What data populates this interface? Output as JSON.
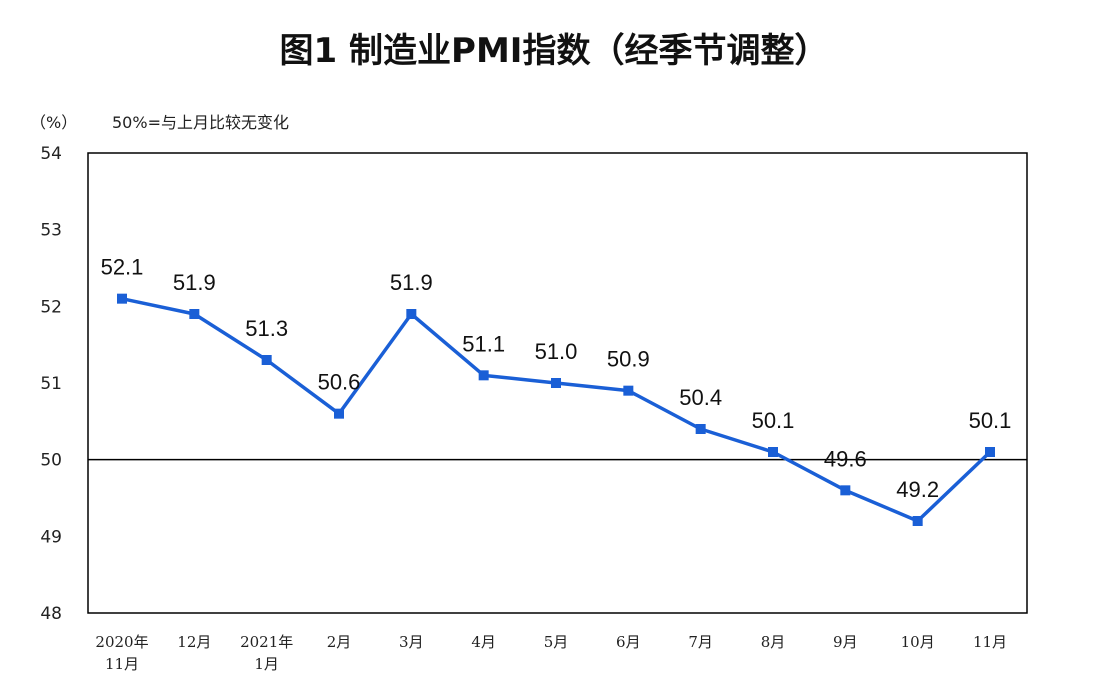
{
  "chart_data": {
    "type": "line",
    "title": "图1 制造业PMI指数（经季节调整）",
    "unit_label": "（%）",
    "note": "50%=与上月比较无变化",
    "categories": [
      [
        "2020年",
        "11月"
      ],
      [
        "12月"
      ],
      [
        "2021年",
        "1月"
      ],
      [
        "2月"
      ],
      [
        "3月"
      ],
      [
        "4月"
      ],
      [
        "5月"
      ],
      [
        "6月"
      ],
      [
        "7月"
      ],
      [
        "8月"
      ],
      [
        "9月"
      ],
      [
        "10月"
      ],
      [
        "11月"
      ]
    ],
    "values": [
      52.1,
      51.9,
      51.3,
      50.6,
      51.9,
      51.1,
      51.0,
      50.9,
      50.4,
      50.1,
      49.6,
      49.2,
      50.1
    ],
    "value_labels": [
      "52.1",
      "51.9",
      "51.3",
      "50.6",
      "51.9",
      "51.1",
      "51.0",
      "50.9",
      "50.4",
      "50.1",
      "49.6",
      "49.2",
      "50.1"
    ],
    "ylim": [
      48,
      54
    ],
    "yticks": [
      "48",
      "49",
      "50",
      "51",
      "52",
      "53",
      "54"
    ],
    "reference_line": 50,
    "colors": {
      "series": "#1a5fd6",
      "axis": "#000000"
    }
  }
}
